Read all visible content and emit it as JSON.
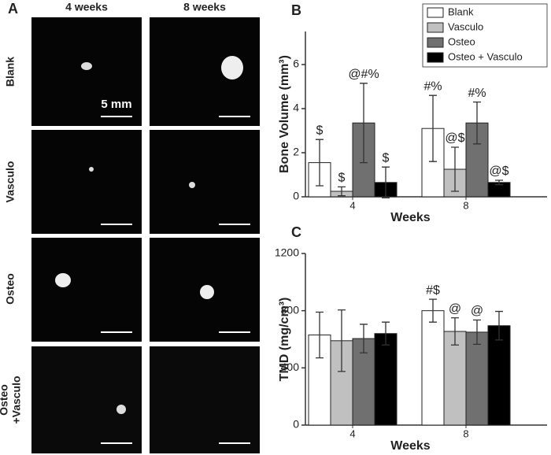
{
  "panel_a": {
    "label": "A",
    "columns": [
      "4 weeks",
      "8 weeks"
    ],
    "rows": [
      [
        "Blank"
      ],
      [
        "Vasculo"
      ],
      [
        "Osteo"
      ],
      [
        "Osteo",
        "+Vasculo"
      ]
    ],
    "scale_bar": "5 mm"
  },
  "chart_data": [
    {
      "type": "bar",
      "panel_label": "B",
      "x_label": "Weeks",
      "y_label": "Bone Volume (mm³)",
      "categories": [
        "4",
        "8"
      ],
      "ylim": [
        0,
        7.5
      ],
      "yticks": [
        0,
        2,
        4,
        6
      ],
      "legend": "top right",
      "series": [
        {
          "name": "Blank",
          "color": "#ffffff",
          "values": [
            1.55,
            3.1
          ],
          "errors": [
            1.05,
            1.5
          ],
          "annotations": [
            "$",
            "#%"
          ]
        },
        {
          "name": "Vasculo",
          "color": "#c0c0c0",
          "values": [
            0.25,
            1.25
          ],
          "errors": [
            0.2,
            1.0
          ],
          "annotations": [
            "$",
            "@$"
          ]
        },
        {
          "name": "Osteo",
          "color": "#707070",
          "values": [
            3.35,
            3.35
          ],
          "errors": [
            1.8,
            0.95
          ],
          "annotations": [
            "@#%",
            "#%"
          ]
        },
        {
          "name": "Osteo + Vasculo",
          "color": "#000000",
          "values": [
            0.65,
            0.65
          ],
          "errors": [
            0.7,
            0.1
          ],
          "annotations": [
            "$",
            "@$"
          ]
        }
      ]
    },
    {
      "type": "bar",
      "panel_label": "C",
      "x_label": "Weeks",
      "y_label": "TMD (mg/cm³)",
      "categories": [
        "4",
        "8"
      ],
      "ylim": [
        0,
        1200
      ],
      "yticks": [
        0,
        400,
        800,
        1200
      ],
      "series": [
        {
          "color": "#ffffff",
          "values": [
            630,
            800
          ],
          "errors": [
            160,
            80
          ],
          "annotations": [
            null,
            "#$"
          ]
        },
        {
          "color": "#c0c0c0",
          "values": [
            590,
            655
          ],
          "errors": [
            215,
            95
          ],
          "annotations": [
            null,
            "@"
          ]
        },
        {
          "color": "#707070",
          "values": [
            605,
            650
          ],
          "errors": [
            100,
            85
          ],
          "annotations": [
            null,
            "@"
          ]
        },
        {
          "color": "#000000",
          "values": [
            640,
            695
          ],
          "errors": [
            80,
            100
          ],
          "annotations": [
            null,
            null
          ]
        }
      ]
    }
  ]
}
